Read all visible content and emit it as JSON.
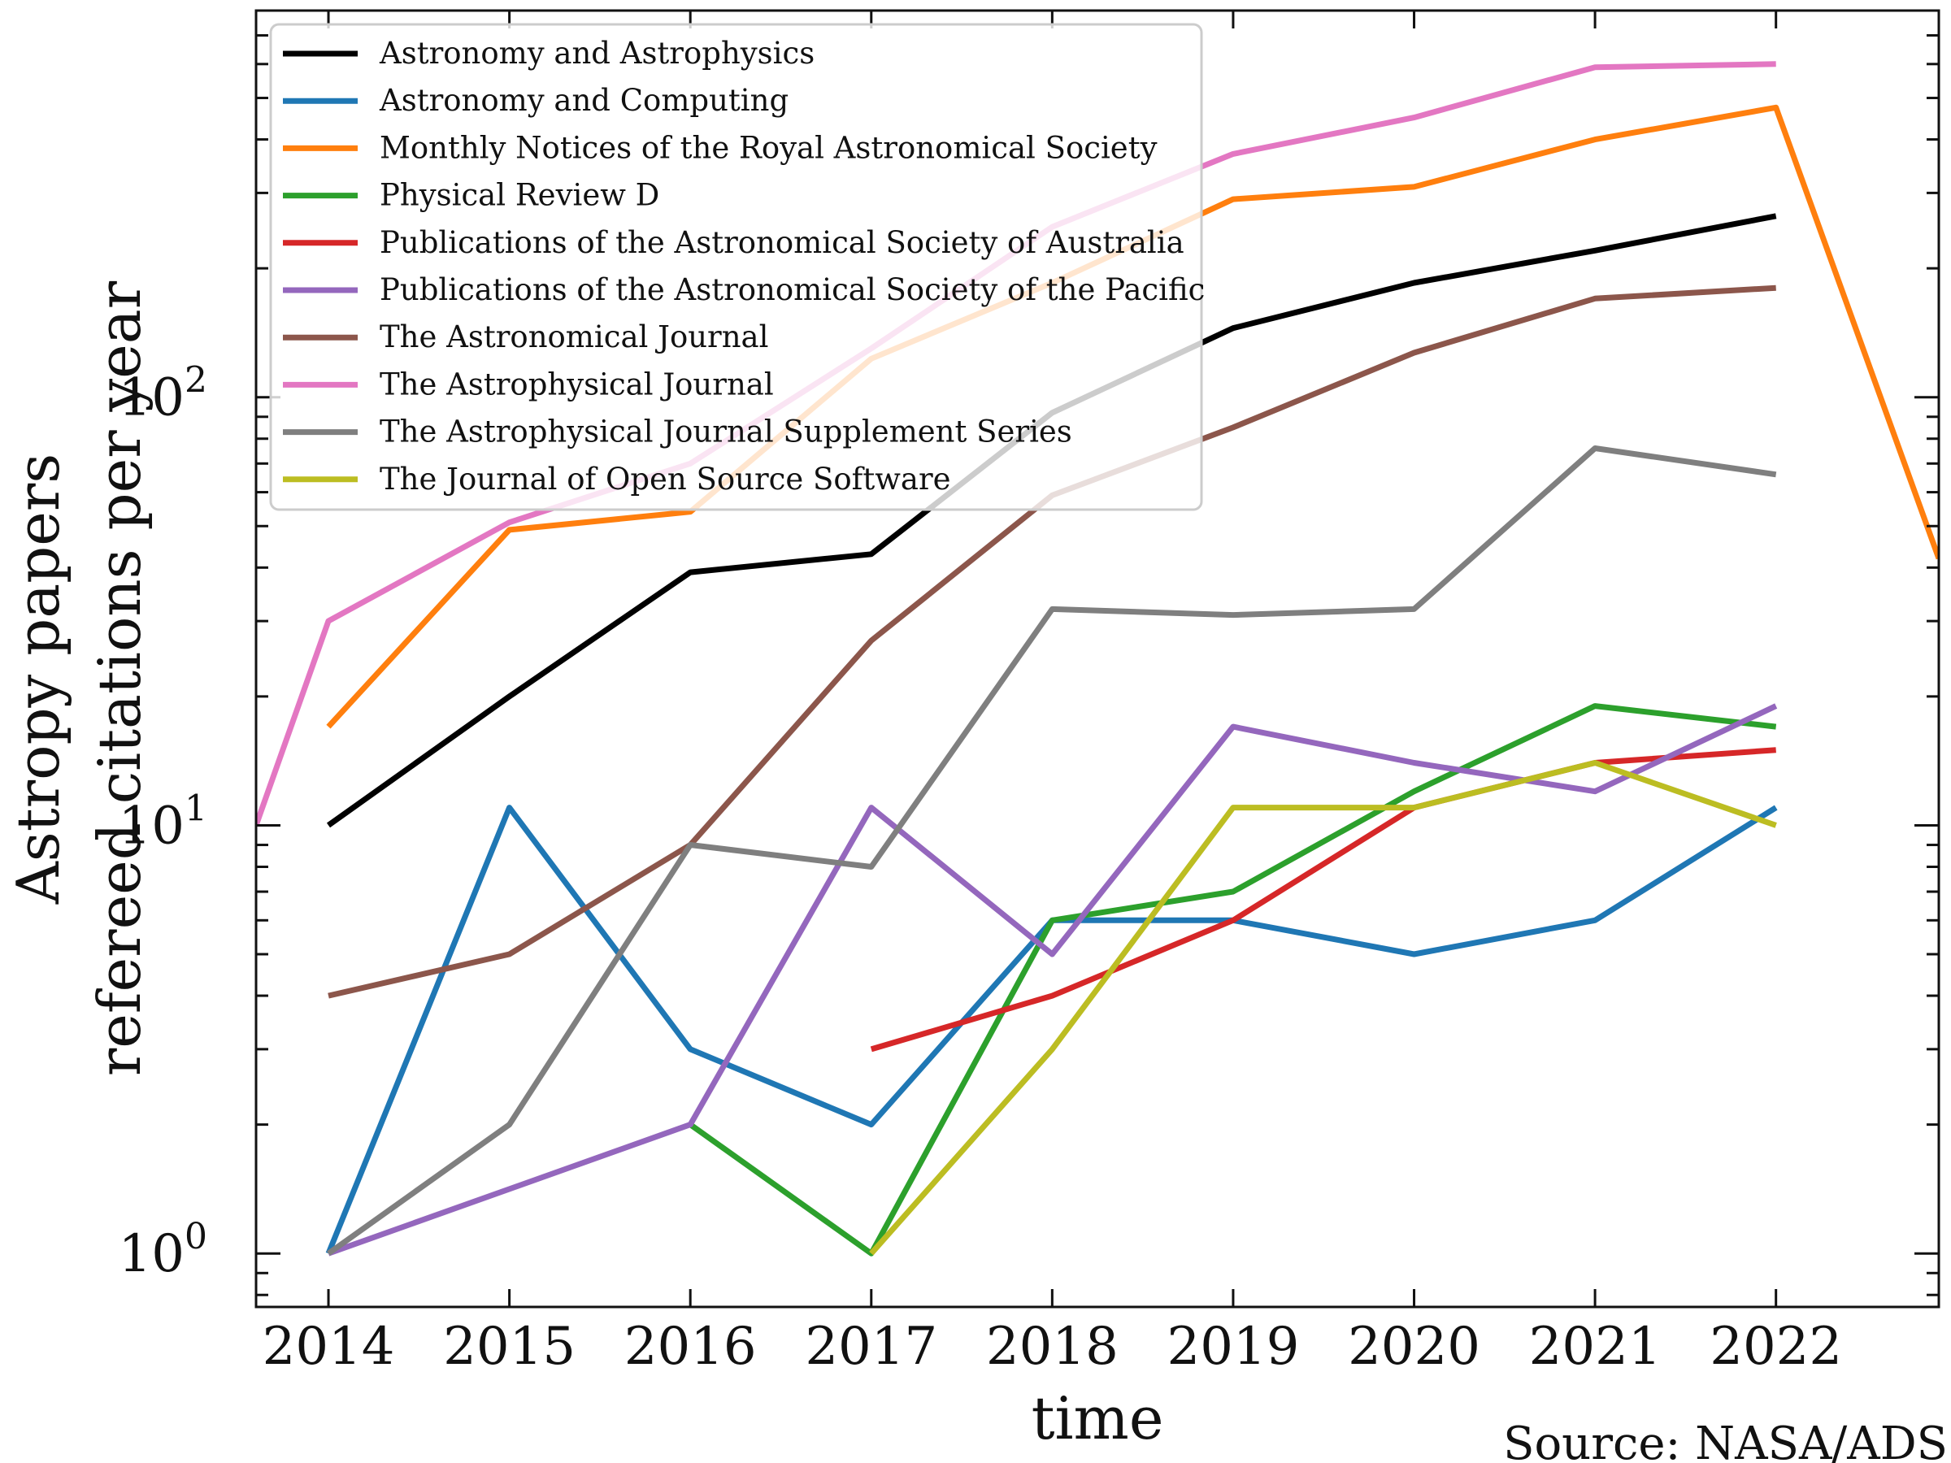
{
  "chart_data": {
    "type": "line",
    "title": "",
    "xlabel": "time",
    "ylabel_lines": [
      "Astropy papers",
      "refereed citations per year"
    ],
    "source_note": "Source: NASA/ADS",
    "x_scale": "linear",
    "y_scale": "log",
    "xlim": [
      2013.6,
      2022.9
    ],
    "ylim": [
      0.75,
      800
    ],
    "x_ticks": [
      2014,
      2015,
      2016,
      2017,
      2018,
      2019,
      2020,
      2021,
      2022
    ],
    "x_tick_labels": [
      "2014",
      "2015",
      "2016",
      "2017",
      "2018",
      "2019",
      "2020",
      "2021",
      "2022"
    ],
    "y_ticks": [
      1,
      10,
      100
    ],
    "y_tick_base": [
      "10",
      "10",
      "10"
    ],
    "y_tick_exp": [
      "0",
      "1",
      "2"
    ],
    "legend_position": "top-left",
    "grid": false,
    "series": [
      {
        "name": "Astronomy and Astrophysics",
        "color": "#000000",
        "points": [
          [
            2014,
            10
          ],
          [
            2015,
            20
          ],
          [
            2016,
            39
          ],
          [
            2017,
            43
          ],
          [
            2018,
            92
          ],
          [
            2019,
            145
          ],
          [
            2020,
            185
          ],
          [
            2021,
            220
          ],
          [
            2022,
            265
          ]
        ]
      },
      {
        "name": "Astronomy and Computing",
        "color": "#1f77b4",
        "points": [
          [
            2014,
            1
          ],
          [
            2015,
            11
          ],
          [
            2016,
            3
          ],
          [
            2017,
            2
          ],
          [
            2018,
            6
          ],
          [
            2019,
            6
          ],
          [
            2020,
            5
          ],
          [
            2021,
            6
          ],
          [
            2022,
            11
          ]
        ]
      },
      {
        "name": "Monthly Notices of the Royal Astronomical Society",
        "color": "#ff7f0e",
        "points": [
          [
            2014,
            17
          ],
          [
            2015,
            49
          ],
          [
            2016,
            54
          ],
          [
            2017,
            123
          ],
          [
            2018,
            185
          ],
          [
            2019,
            290
          ],
          [
            2020,
            310
          ],
          [
            2021,
            400
          ],
          [
            2022,
            475
          ],
          [
            2022.9,
            42
          ]
        ]
      },
      {
        "name": "Physical Review D",
        "color": "#2ca02c",
        "points": [
          [
            2016,
            2
          ],
          [
            2017,
            1
          ],
          [
            2018,
            6
          ],
          [
            2019,
            7
          ],
          [
            2020,
            12
          ],
          [
            2021,
            19
          ],
          [
            2022,
            17
          ]
        ]
      },
      {
        "name": "Publications of the Astronomical Society of Australia",
        "color": "#d62728",
        "points": [
          [
            2017,
            3
          ],
          [
            2018,
            4
          ],
          [
            2019,
            6
          ],
          [
            2020,
            11
          ],
          [
            2021,
            14
          ],
          [
            2022,
            15
          ]
        ]
      },
      {
        "name": "Publications of the Astronomical Society of the Pacific",
        "color": "#9467bd",
        "points": [
          [
            2014,
            1
          ],
          [
            2016,
            2
          ],
          [
            2017,
            11
          ],
          [
            2018,
            5
          ],
          [
            2019,
            17
          ],
          [
            2020,
            14
          ],
          [
            2021,
            12
          ],
          [
            2022,
            19
          ]
        ]
      },
      {
        "name": "The Astronomical Journal",
        "color": "#8c564b",
        "points": [
          [
            2014,
            4
          ],
          [
            2015,
            5
          ],
          [
            2016,
            9
          ],
          [
            2017,
            27
          ],
          [
            2018,
            59
          ],
          [
            2019,
            85
          ],
          [
            2020,
            127
          ],
          [
            2021,
            170
          ],
          [
            2022,
            180
          ]
        ]
      },
      {
        "name": "The Astrophysical Journal",
        "color": "#e377c2",
        "points": [
          [
            2013.6,
            10
          ],
          [
            2014,
            30
          ],
          [
            2015,
            51
          ],
          [
            2016,
            70
          ],
          [
            2017,
            130
          ],
          [
            2018,
            250
          ],
          [
            2019,
            370
          ],
          [
            2020,
            450
          ],
          [
            2021,
            590
          ],
          [
            2022,
            600
          ]
        ]
      },
      {
        "name": "The Astrophysical Journal Supplement Series",
        "color": "#7f7f7f",
        "points": [
          [
            2014,
            1
          ],
          [
            2015,
            2
          ],
          [
            2016,
            9
          ],
          [
            2017,
            8
          ],
          [
            2018,
            32
          ],
          [
            2019,
            31
          ],
          [
            2020,
            32
          ],
          [
            2021,
            76
          ],
          [
            2022,
            66
          ]
        ]
      },
      {
        "name": "The Journal of Open Source Software",
        "color": "#bcbd22",
        "points": [
          [
            2017,
            1
          ],
          [
            2018,
            3
          ],
          [
            2019,
            11
          ],
          [
            2020,
            11
          ],
          [
            2021,
            14
          ],
          [
            2022,
            10
          ]
        ]
      }
    ]
  }
}
